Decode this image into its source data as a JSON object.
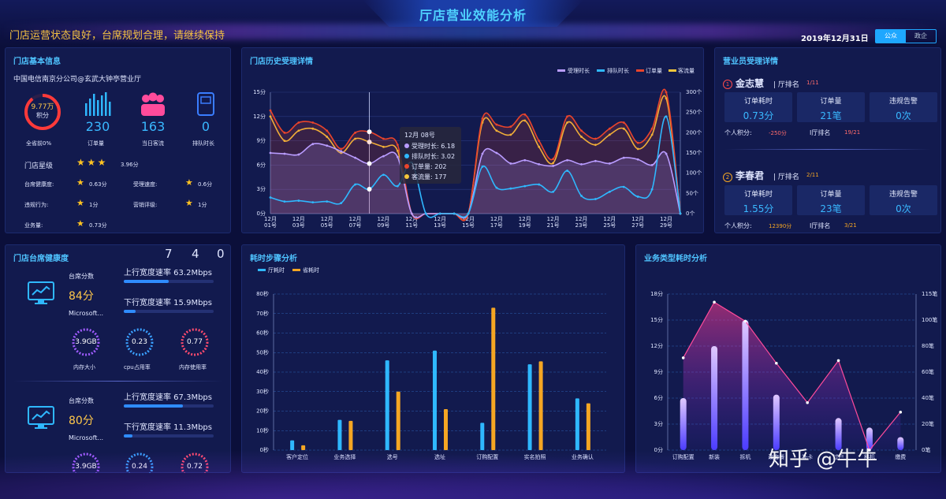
{
  "header": {
    "title": "厅店营业效能分析",
    "slogan": "门店运营状态良好，台席规划合理，请继续保持",
    "date": "2019年12月31日",
    "switch": [
      "公众",
      "政企"
    ]
  },
  "store_info": {
    "title": "门店基本信息",
    "store_name": "中国电信南京分公司@玄武大钟亭营业厅",
    "score_value": "9.77万",
    "score_unit": "积分",
    "score_caption": "全省前0%",
    "orders_value": "230",
    "orders_label": "订单量",
    "flow_value": "163",
    "flow_label": "当日客流",
    "queue_value": "0",
    "queue_label": "排队时长",
    "star_label": "门店星级",
    "star_value": "3.96分",
    "stars": 3,
    "metrics": [
      {
        "label": "台席健康度:",
        "value": "0.63分"
      },
      {
        "label": "受理速度:",
        "value": "0.6分"
      },
      {
        "label": "违规行为:",
        "value": "1分"
      },
      {
        "label": "营销评级:",
        "value": "1分"
      },
      {
        "label": "业务量:",
        "value": "0.73分"
      }
    ]
  },
  "history": {
    "title": "门店历史受理详情",
    "legend": [
      "受理时长",
      "排队时长",
      "订单量",
      "客流量"
    ],
    "tooltip": {
      "date": "12月 08号",
      "rows": [
        "受理时长: 6.18",
        "排队时长: 3.02",
        "订单量: 202",
        "客流量: 177"
      ]
    }
  },
  "clerks": {
    "title": "营业员受理详情",
    "list": [
      {
        "rank_no": "1",
        "name": "金志慧",
        "hall_rank_label": "厅排名",
        "hall_rank": "1/11",
        "cards": [
          {
            "label": "订单耗时",
            "value": "0.73分"
          },
          {
            "label": "订单量",
            "value": "21笔"
          },
          {
            "label": "违规告警",
            "value": "0次"
          }
        ],
        "points_label": "个人积分:",
        "points": "-250分",
        "rank_label": "I厅排名",
        "rank": "19/21"
      },
      {
        "rank_no": "2",
        "name": "李春君",
        "hall_rank_label": "厅排名",
        "hall_rank": "2/11",
        "cards": [
          {
            "label": "订单耗时",
            "value": "1.55分"
          },
          {
            "label": "订单量",
            "value": "23笔"
          },
          {
            "label": "违规告警",
            "value": "0次"
          }
        ],
        "points_label": "个人积分:",
        "points": "12390分",
        "rank_label": "I厅排名",
        "rank": "3/21"
      }
    ]
  },
  "health": {
    "title": "门店台席健康度",
    "counter": [
      "7",
      "4",
      "0"
    ],
    "desks": [
      {
        "score_label": "台席分数",
        "score": "84分",
        "os": "Microsoft...",
        "up_label": "上行宽度速率 63.2Mbps",
        "up_fill": 0.5,
        "down_label": "下行宽度速率 15.9Mbps",
        "down_fill": 0.13,
        "rings": [
          {
            "value": "3.9GB",
            "label": "内存大小",
            "color": "#a05cff"
          },
          {
            "value": "0.23",
            "label": "cpu占用率",
            "color": "#3aa0ff"
          },
          {
            "value": "0.77",
            "label": "内存使用率",
            "color": "#ff4b6e"
          }
        ]
      },
      {
        "score_label": "台席分数",
        "score": "80分",
        "os": "Microsoft...",
        "up_label": "上行宽度速率 67.3Mbps",
        "up_fill": 0.66,
        "down_label": "下行宽度速率 11.3Mbps",
        "down_fill": 0.1,
        "rings": [
          {
            "value": "3.9GB",
            "label": "",
            "color": "#a05cff"
          },
          {
            "value": "0.24",
            "label": "",
            "color": "#3aa0ff"
          },
          {
            "value": "0.72",
            "label": "",
            "color": "#ff4b6e"
          }
        ]
      }
    ]
  },
  "steps": {
    "title": "耗时步骤分析"
  },
  "biz": {
    "title": "业务类型耗时分析"
  },
  "watermark": "知乎 @牛牛",
  "chart_data": [
    {
      "type": "line",
      "title": "门店历史受理详情",
      "x": [
        "12月01号",
        "12月02号",
        "12月03号",
        "12月04号",
        "12月05号",
        "12月06号",
        "12月07号",
        "12月08号",
        "12月09号",
        "12月10号",
        "12月11号",
        "12月12号",
        "12月13号",
        "12月14号",
        "12月15号",
        "12月16号",
        "12月17号",
        "12月18号",
        "12月19号",
        "12月20号",
        "12月21号",
        "12月22号",
        "12月23号",
        "12月24号",
        "12月25号",
        "12月26号",
        "12月27号",
        "12月28号",
        "12月29号",
        "12月30号"
      ],
      "x_tick_labels": [
        [
          "12月",
          "01号"
        ],
        [
          "12月",
          "03号"
        ],
        [
          "12月",
          "05号"
        ],
        [
          "12月",
          "07号"
        ],
        [
          "12月",
          "09号"
        ],
        [
          "12月",
          "11号"
        ],
        [
          "12月",
          "13号"
        ],
        [
          "12月",
          "15号"
        ],
        [
          "12月",
          "17号"
        ],
        [
          "12月",
          "19号"
        ],
        [
          "12月",
          "21号"
        ],
        [
          "12月",
          "23号"
        ],
        [
          "12月",
          "25号"
        ],
        [
          "12月",
          "27号"
        ],
        [
          "12月",
          "29号"
        ]
      ],
      "y_left_ticks": [
        "0分",
        "3分",
        "6分",
        "9分",
        "12分",
        "15分"
      ],
      "y_left_range": [
        0,
        15
      ],
      "y_right_ticks": [
        "0个",
        "50个",
        "100个",
        "150个",
        "200个",
        "250个",
        "300个"
      ],
      "y_right_range": [
        0,
        300
      ],
      "series": [
        {
          "name": "受理时长",
          "axis": "left",
          "color": "#b99cff",
          "values": [
            7.5,
            7.4,
            7.3,
            8.6,
            8.4,
            7.7,
            6.9,
            6.18,
            7.1,
            7.0,
            0,
            0,
            0,
            0,
            0,
            7.4,
            7.5,
            6.2,
            6.6,
            6.1,
            5.9,
            6.6,
            6.1,
            6.5,
            6.2,
            6.9,
            6.7,
            6.0,
            7.4,
            0
          ]
        },
        {
          "name": "排队时长",
          "axis": "left",
          "color": "#2fb8ff",
          "values": [
            2.0,
            1.5,
            1.6,
            1.4,
            1.5,
            1.3,
            3.6,
            3.02,
            4.8,
            3.4,
            6.3,
            0,
            0,
            0,
            0,
            5.8,
            3.2,
            3.1,
            3.4,
            3.6,
            2.7,
            5.3,
            2.2,
            1.8,
            2.7,
            3.3,
            2.1,
            3.0,
            12.0,
            0
          ]
        },
        {
          "name": "订单量",
          "axis": "right",
          "color": "#e9442b",
          "values": [
            255,
            200,
            225,
            225,
            205,
            160,
            200,
            202,
            185,
            170,
            0,
            0,
            0,
            0,
            0,
            235,
            220,
            215,
            245,
            180,
            135,
            240,
            205,
            185,
            210,
            225,
            175,
            210,
            300,
            0
          ]
        },
        {
          "name": "客流量",
          "axis": "right",
          "color": "#f3c63b",
          "values": [
            240,
            180,
            205,
            210,
            190,
            150,
            185,
            177,
            165,
            155,
            0,
            0,
            0,
            0,
            0,
            225,
            205,
            195,
            230,
            165,
            125,
            225,
            190,
            170,
            195,
            210,
            160,
            195,
            285,
            0
          ]
        }
      ]
    },
    {
      "type": "bar",
      "title": "耗时步骤分析",
      "categories": [
        "客户定位",
        "业务选择",
        "选号",
        "选址",
        "订购配置",
        "实名拍照",
        "业务确认"
      ],
      "y_ticks": [
        "0秒",
        "10秒",
        "20秒",
        "30秒",
        "40秒",
        "50秒",
        "60秒",
        "70秒",
        "80秒"
      ],
      "ylim": [
        0,
        80
      ],
      "series": [
        {
          "name": "厅耗时",
          "color": "#2fb8ff",
          "values": [
            5,
            15.5,
            46,
            51,
            14,
            44,
            26.5
          ]
        },
        {
          "name": "省耗时",
          "color": "#f5a623",
          "values": [
            2.5,
            15,
            30,
            21,
            73,
            45.5,
            24
          ]
        }
      ]
    },
    {
      "type": "bar",
      "title": "业务类型耗时分析",
      "categories": [
        "订购配置",
        "新装",
        "拆机",
        "改套餐",
        "补卡",
        "过户",
        "移机",
        "缴费"
      ],
      "visible_category_labels": [
        "订购配置",
        "新装",
        "拆机",
        "改套餐",
        "补卡",
        "过户",
        "移机",
        "缴费"
      ],
      "y_left_ticks": [
        "0分",
        "3分",
        "6分",
        "9分",
        "12分",
        "15分",
        "18分"
      ],
      "y_left_range": [
        0,
        18
      ],
      "y_right_ticks": [
        "0笔",
        "20笔",
        "40笔",
        "60笔",
        "80笔",
        "100笔",
        "115笔"
      ],
      "y_right_range": [
        0,
        115
      ],
      "series": [
        {
          "name": "耗时",
          "axis": "left",
          "color": "#a88bff",
          "values": [
            6,
            12,
            15,
            6.4,
            0,
            3.7,
            2.6,
            1.5
          ]
        },
        {
          "name": "笔数",
          "axis": "right",
          "type": "line",
          "color": "#ff4b9b",
          "values": [
            68,
            109,
            95,
            64,
            35,
            66,
            0,
            28
          ]
        }
      ]
    }
  ]
}
